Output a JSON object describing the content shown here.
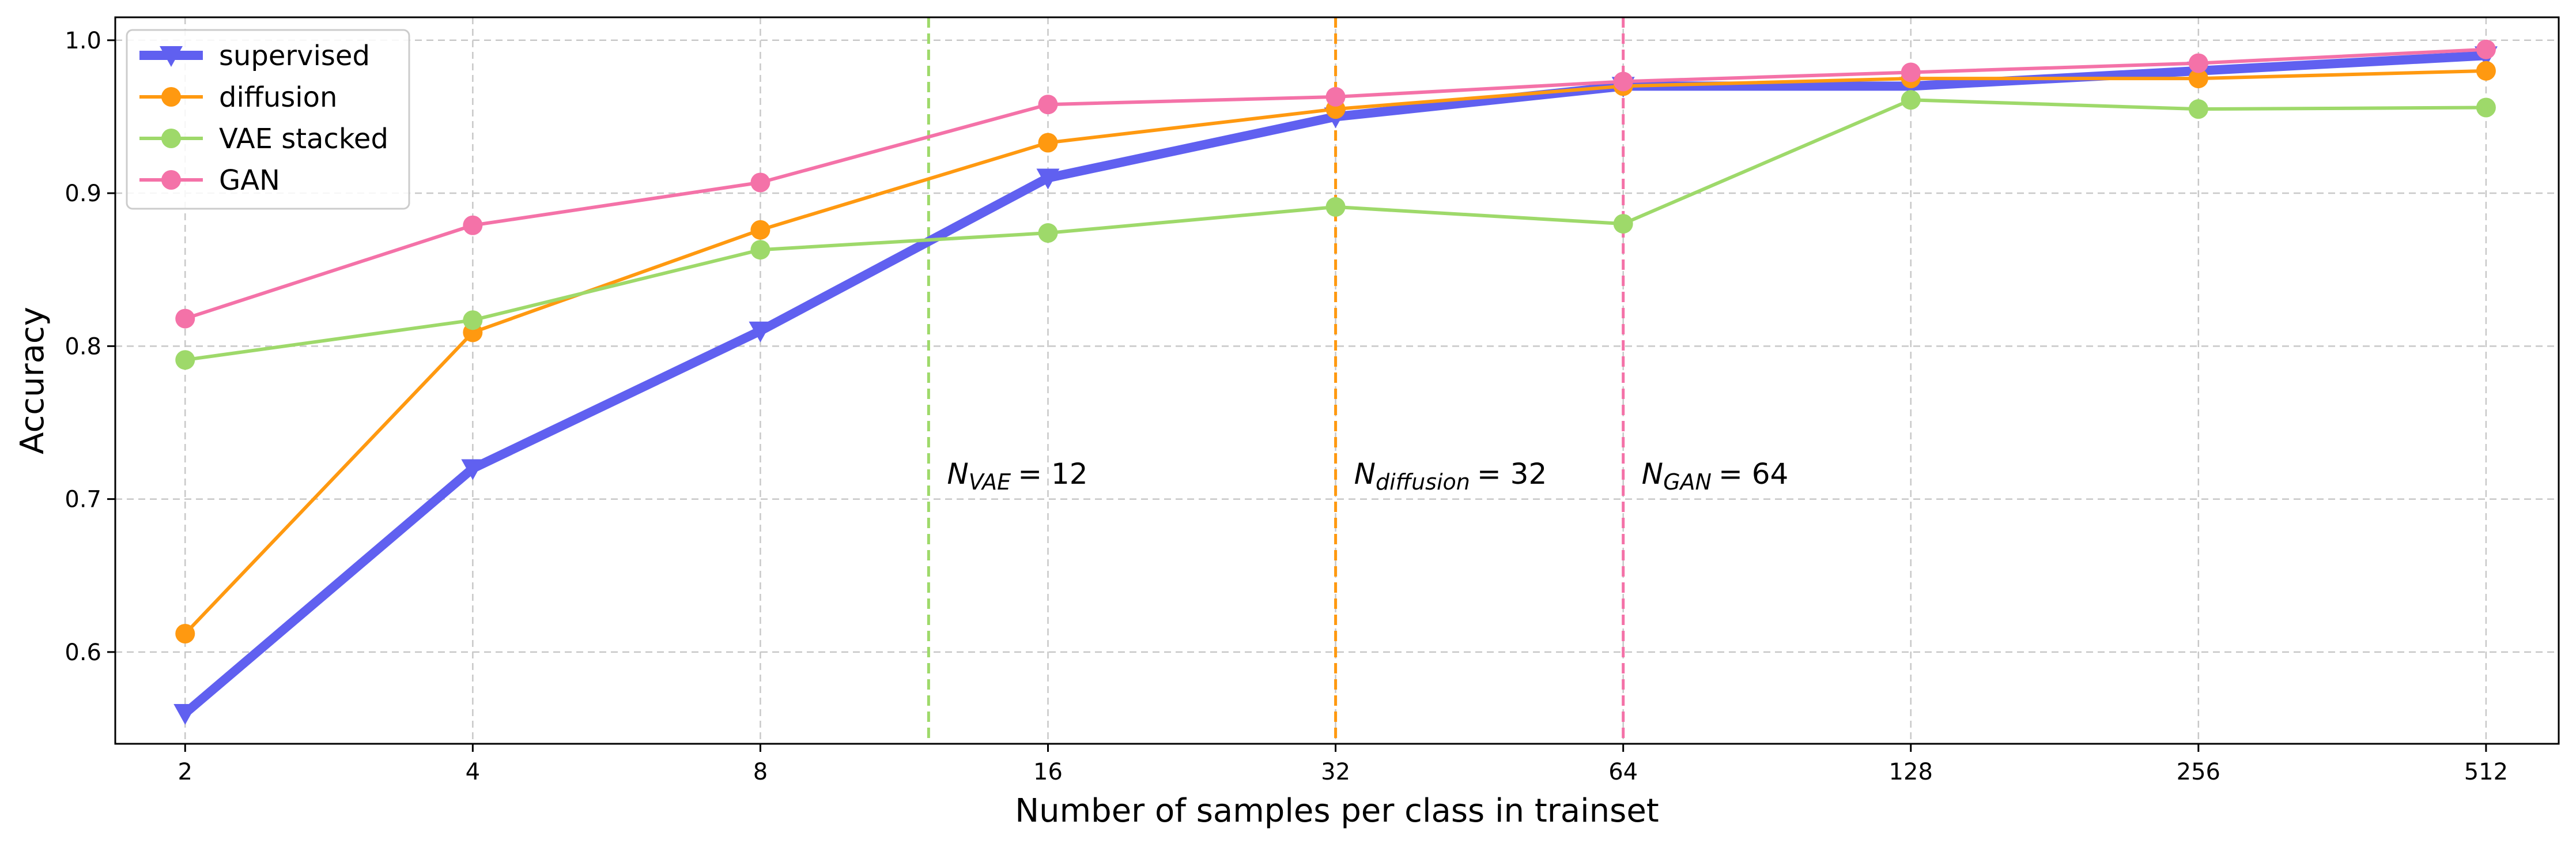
{
  "chart_data": {
    "type": "line",
    "title": "",
    "xlabel": "Number of samples per class in trainset",
    "ylabel": "Accuracy",
    "x_scale": "log2",
    "x": [
      2,
      4,
      8,
      16,
      32,
      64,
      128,
      256,
      512
    ],
    "x_tick_labels": [
      "2",
      "4",
      "8",
      "16",
      "32",
      "64",
      "128",
      "256",
      "512"
    ],
    "xlim": [
      1.69,
      610
    ],
    "ylim": [
      0.54,
      1.015
    ],
    "y_ticks": [
      0.6,
      0.7,
      0.8,
      0.9,
      1.0
    ],
    "y_tick_labels": [
      "0.6",
      "0.7",
      "0.8",
      "0.9",
      "1.0"
    ],
    "grid": true,
    "legend_position": "upper-left",
    "series": [
      {
        "name": "supervised",
        "color": "#6060f0",
        "marker": "triangle-down",
        "values": [
          0.56,
          0.72,
          0.81,
          0.91,
          0.95,
          0.97,
          0.97,
          0.98,
          0.99
        ]
      },
      {
        "name": "diffusion",
        "color": "#ff9910",
        "marker": "circle",
        "values": [
          0.612,
          0.809,
          0.876,
          0.933,
          0.955,
          0.97,
          0.975,
          0.975,
          0.98
        ]
      },
      {
        "name": "VAE stacked",
        "color": "#9ed96a",
        "marker": "circle",
        "values": [
          0.791,
          0.817,
          0.863,
          0.874,
          0.891,
          0.88,
          0.961,
          0.955,
          0.956
        ]
      },
      {
        "name": "GAN",
        "color": "#f472a8",
        "marker": "circle",
        "values": [
          0.818,
          0.879,
          0.907,
          0.958,
          0.963,
          0.973,
          0.979,
          0.985,
          0.994
        ]
      }
    ],
    "vlines": [
      {
        "x": 12,
        "color": "#9ed96a",
        "label_sub": "VAE",
        "label_value": "= 12"
      },
      {
        "x": 32,
        "color": "#ff9910",
        "label_sub": "diffusion",
        "label_value": "= 32"
      },
      {
        "x": 64,
        "color": "#f472a8",
        "label_sub": "GAN",
        "label_value": "= 64"
      }
    ],
    "annotation_symbol": "N"
  }
}
